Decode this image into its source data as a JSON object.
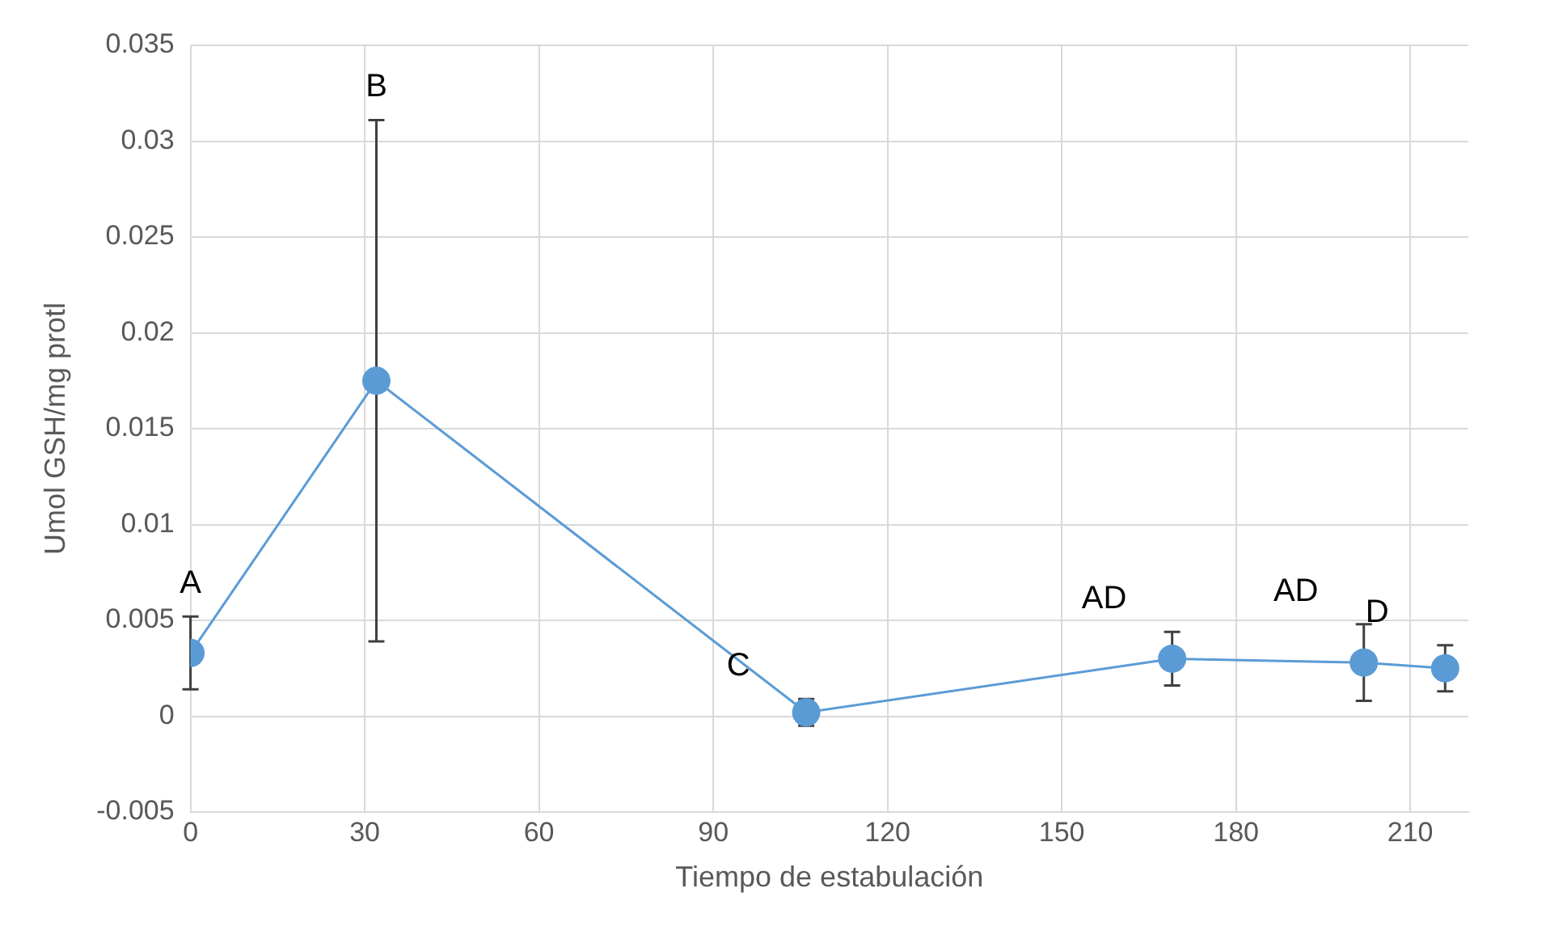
{
  "chart_data": {
    "type": "line",
    "xlabel": "Tiempo de estabulación",
    "ylabel": "Umol GSH/mg protl",
    "x": [
      0,
      32,
      106,
      169,
      202,
      216
    ],
    "series": [
      {
        "color": "#5b9bd5",
        "values": [
          0.0033,
          0.0175,
          0.0002,
          0.003,
          0.0028,
          0.0025
        ],
        "errors": [
          0.0019,
          0.0136,
          0.0007,
          0.0014,
          0.002,
          0.0012
        ]
      }
    ],
    "xlim": [
      0,
      220
    ],
    "xticks": [
      0,
      30,
      60,
      90,
      120,
      150,
      180,
      210
    ],
    "ylim": [
      -0.005,
      0.035
    ],
    "yticks": [
      -0.005,
      0,
      0.005,
      0.01,
      0.015,
      0.02,
      0.025,
      0.03,
      0.035
    ],
    "grid": true,
    "legend": false,
    "marker": "circle",
    "line_style": "solid",
    "annotations": [
      "A",
      "B",
      "C",
      "AD",
      "AD",
      "D"
    ]
  }
}
